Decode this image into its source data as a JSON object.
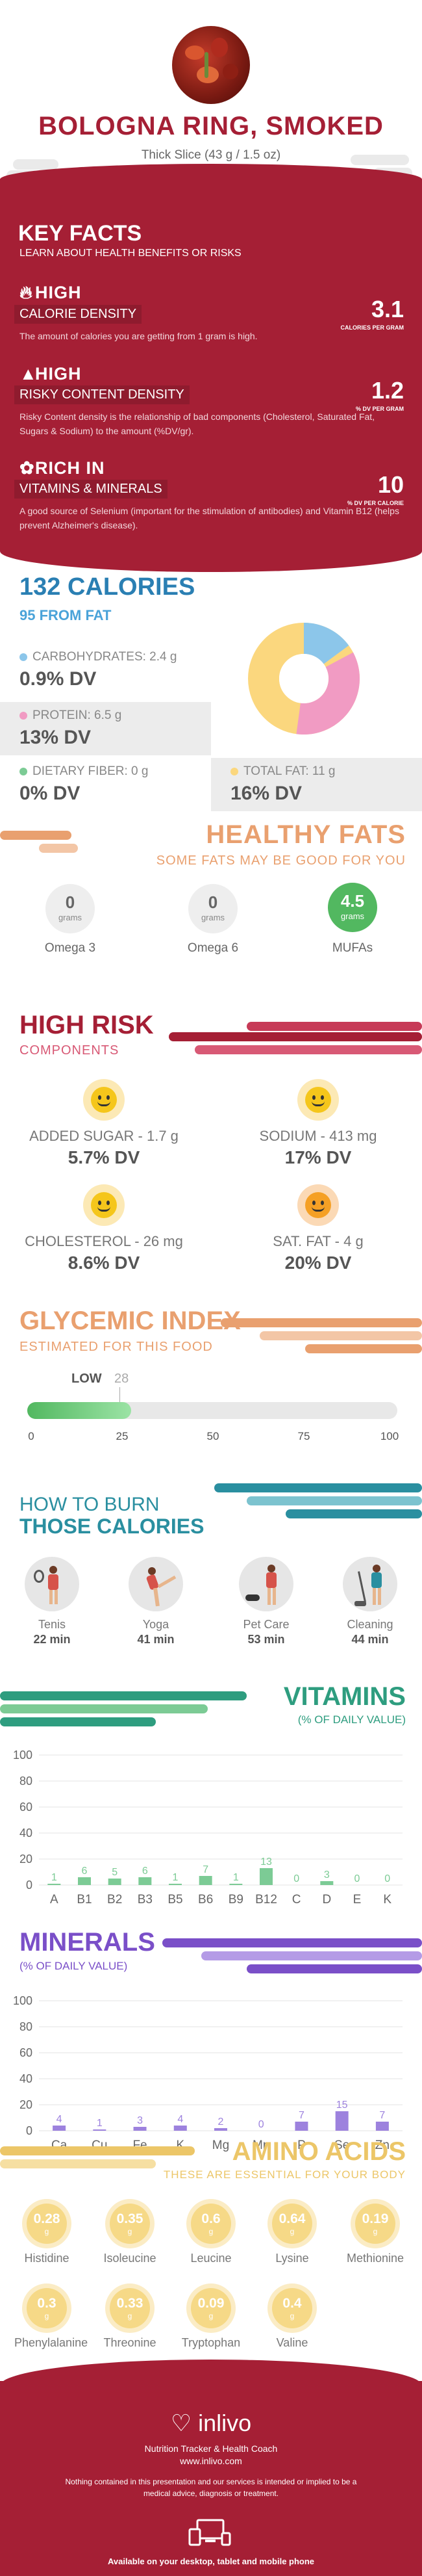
{
  "header": {
    "title": "BOLOGNA RING, SMOKED",
    "serving": "Thick Slice (43 g / 1.5 oz)"
  },
  "key_facts": {
    "title": "KEY FACTS",
    "subtitle": "LEARN ABOUT HEALTH BENEFITS OR RISKS",
    "facts": [
      {
        "level": "HIGH",
        "name": "CALORIE DENSITY",
        "value": "3.1",
        "unit": "CALORIES PER GRAM",
        "desc": "The amount of calories you are getting from 1 gram is high.",
        "icon": "flame-icon"
      },
      {
        "level": "HIGH",
        "name": "RISKY CONTENT DENSITY",
        "value": "1.2",
        "unit": "% DV PER GRAM",
        "desc": "Risky Content density is the relationship of bad components (Cholesterol, Saturated Fat, Sugars & Sodium) to the amount (%DV/gr).",
        "icon": "warning-icon"
      },
      {
        "level": "RICH IN",
        "name": "VITAMINS & MINERALS",
        "value": "10",
        "unit": "% DV PER CALORIE",
        "desc": "A good source of Selenium (important for the stimulation of antibodies) and Vitamin B12 (helps prevent Alzheimer's disease).",
        "icon": "leaf-icon"
      }
    ]
  },
  "calories": {
    "title": "132 CALORIES",
    "from_fat": "95 FROM FAT",
    "carbs": {
      "label": "CARBOHYDRATES: 2.4 g",
      "dv": "0.9% DV",
      "color": "#8cc6ea"
    },
    "protein": {
      "label": "PROTEIN: 6.5 g",
      "dv": "13% DV",
      "color": "#f19bc3"
    },
    "fiber": {
      "label": "DIETARY FIBER: 0 g",
      "dv": "0% DV",
      "color": "#7ccb95"
    },
    "fat": {
      "label": "TOTAL FAT: 11 g",
      "dv": "16% DV",
      "color": "#fbd77e"
    }
  },
  "healthy_fats": {
    "title": "HEALTHY FATS",
    "subtitle": "SOME FATS MAY BE GOOD FOR YOU",
    "items": [
      {
        "value": "0",
        "unit": "grams",
        "label": "Omega 3"
      },
      {
        "value": "0",
        "unit": "grams",
        "label": "Omega 6"
      },
      {
        "value": "4.5",
        "unit": "grams",
        "label": "MUFAs"
      }
    ]
  },
  "high_risk": {
    "title": "HIGH RISK",
    "subtitle": "COMPONENTS",
    "items": [
      {
        "label": "ADDED SUGAR - 1.7 g",
        "dv": "5.7% DV"
      },
      {
        "label": "SODIUM - 413 mg",
        "dv": "17% DV"
      },
      {
        "label": "CHOLESTEROL - 26 mg",
        "dv": "8.6% DV"
      },
      {
        "label": "SAT. FAT - 4 g",
        "dv": "20% DV"
      }
    ]
  },
  "glycemic": {
    "title": "GLYCEMIC INDEX",
    "subtitle": "ESTIMATED FOR THIS FOOD",
    "level": "LOW",
    "value": 28,
    "value_text": "28",
    "ticks": [
      "0",
      "25",
      "50",
      "75",
      "100"
    ]
  },
  "burn": {
    "title1": "HOW TO BURN",
    "title2": "THOSE CALORIES",
    "activities": [
      {
        "name": "Tenis",
        "time": "22 min"
      },
      {
        "name": "Yoga",
        "time": "41 min"
      },
      {
        "name": "Pet Care",
        "time": "53 min"
      },
      {
        "name": "Cleaning",
        "time": "44 min"
      }
    ]
  },
  "vitamins": {
    "title": "VITAMINS",
    "subtitle": "(% OF DAILY VALUE)",
    "chart_data": {
      "type": "bar",
      "categories": [
        "A",
        "B1",
        "B2",
        "B3",
        "B5",
        "B6",
        "B9",
        "B12",
        "C",
        "D",
        "E",
        "K"
      ],
      "values": [
        1,
        6,
        5,
        6,
        1,
        7,
        1,
        13,
        0,
        3,
        0,
        0
      ],
      "labels": [
        "1",
        "6",
        "5",
        "6",
        "1",
        "7",
        "1",
        "13",
        "0",
        "3",
        "0",
        "0"
      ],
      "yticks": [
        "0",
        "20",
        "40",
        "60",
        "80",
        "100"
      ],
      "ylim": [
        0,
        100
      ],
      "color": "#7ccb95"
    }
  },
  "minerals": {
    "title": "MINERALS",
    "subtitle": "(% OF DAILY VALUE)",
    "chart_data": {
      "type": "bar",
      "categories": [
        "Ca",
        "Cu",
        "Fe",
        "K",
        "Mg",
        "Mn",
        "P",
        "Se",
        "Zn"
      ],
      "values": [
        4,
        1,
        3,
        4,
        2,
        0,
        7,
        15,
        7
      ],
      "labels": [
        "4",
        "1",
        "3",
        "4",
        "2",
        "0",
        "7",
        "15",
        "7"
      ],
      "yticks": [
        "0",
        "20",
        "40",
        "60",
        "80",
        "100"
      ],
      "ylim": [
        0,
        100
      ],
      "color": "#9d82de"
    }
  },
  "amino": {
    "title": "AMINO ACIDS",
    "subtitle": "THESE ARE ESSENTIAL FOR YOUR BODY",
    "items": [
      {
        "value": "0.28",
        "unit": "g",
        "label": "Histidine"
      },
      {
        "value": "0.35",
        "unit": "g",
        "label": "Isoleucine"
      },
      {
        "value": "0.6",
        "unit": "g",
        "label": "Leucine"
      },
      {
        "value": "0.64",
        "unit": "g",
        "label": "Lysine"
      },
      {
        "value": "0.19",
        "unit": "g",
        "label": "Methionine"
      },
      {
        "value": "0.3",
        "unit": "g",
        "label": "Phenylalanine"
      },
      {
        "value": "0.33",
        "unit": "g",
        "label": "Threonine"
      },
      {
        "value": "0.09",
        "unit": "g",
        "label": "Tryptophan"
      },
      {
        "value": "0.4",
        "unit": "g",
        "label": "Valine"
      }
    ]
  },
  "footer": {
    "brand": "inlivo",
    "tagline": "Nutrition Tracker & Health Coach",
    "url": "www.inlivo.com",
    "disclaimer": "Nothing contained in this presentation and our services is intended or implied to be a medical advice, diagnosis or treatment.",
    "available": "Available on your desktop, tablet and mobile phone"
  }
}
